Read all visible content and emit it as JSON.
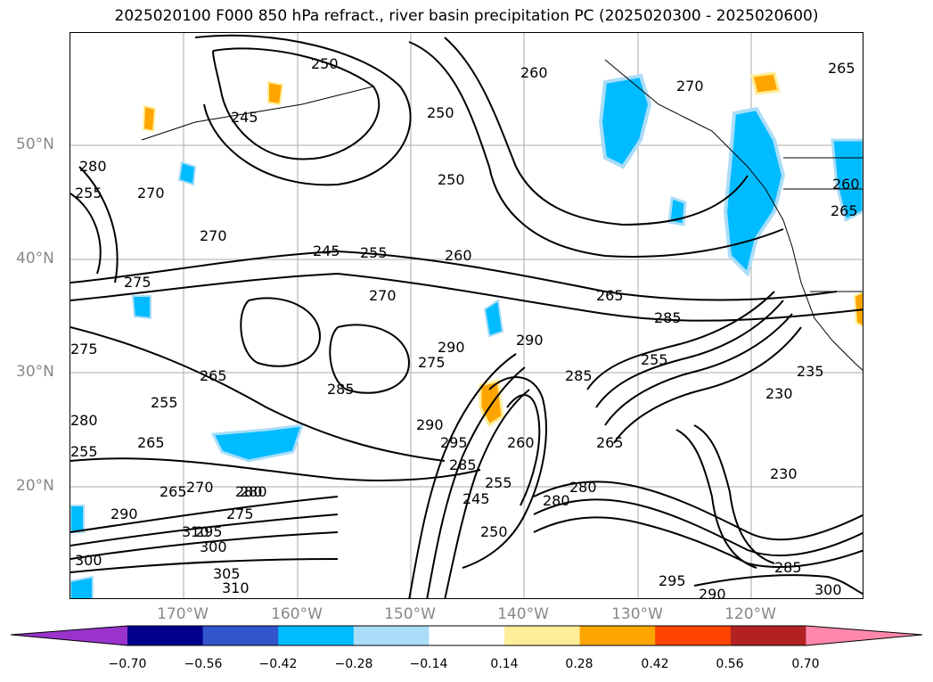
{
  "title": "2025020100 F000 850 hPa refract., river basin precipitation PC (2025020300 - 2025020600)",
  "lat_labels": [
    "50°N",
    "40°N",
    "30°N",
    "20°N"
  ],
  "lon_labels": [
    "170°W",
    "160°W",
    "150°W",
    "140°W",
    "130°W",
    "120°W"
  ],
  "contour_labels": [
    "265",
    "250",
    "245",
    "260",
    "270",
    "250",
    "250",
    "280",
    "255",
    "270",
    "270",
    "275",
    "245",
    "255",
    "260",
    "270",
    "265",
    "285",
    "265",
    "260",
    "275",
    "265",
    "290",
    "290",
    "285",
    "255",
    "285",
    "290",
    "275",
    "255",
    "265",
    "280",
    "265",
    "255",
    "295",
    "285",
    "230",
    "230",
    "260",
    "280",
    "245",
    "235",
    "250",
    "290",
    "280",
    "275",
    "270",
    "310",
    "305",
    "300",
    "295",
    "300",
    "290",
    "285",
    "295",
    "300",
    "310",
    "280",
    "265",
    "280",
    "255"
  ],
  "colorbar": {
    "ticks": [
      "−0.70",
      "−0.56",
      "−0.42",
      "−0.28",
      "−0.14",
      "0.14",
      "0.28",
      "0.42",
      "0.56",
      "0.70"
    ],
    "colors": [
      "#9933cc",
      "#00008b",
      "#3355cc",
      "#00bbff",
      "#aaddf8",
      "#ffffff",
      "#ffee99",
      "#ffa500",
      "#ff4400",
      "#b22222",
      "#ff88aa"
    ]
  }
}
